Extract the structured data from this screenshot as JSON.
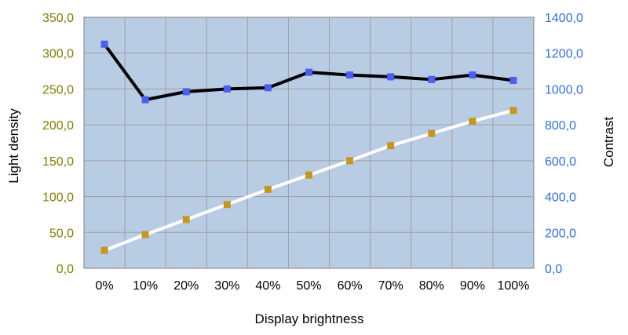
{
  "chart_data": {
    "type": "line",
    "xlabel": "Display brightness",
    "ylabel_left": "Light density",
    "ylabel_right": "Contrast",
    "categories": [
      "0%",
      "10%",
      "20%",
      "30%",
      "40%",
      "50%",
      "60%",
      "70%",
      "80%",
      "90%",
      "100%"
    ],
    "y_left": {
      "range": [
        0,
        350
      ],
      "ticks": [
        "0,0",
        "50,0",
        "100,0",
        "150,0",
        "200,0",
        "250,0",
        "300,0",
        "350,0"
      ],
      "tick_values": [
        0,
        50,
        100,
        150,
        200,
        250,
        300,
        350
      ]
    },
    "y_right": {
      "range": [
        0,
        1400
      ],
      "ticks": [
        "0,0",
        "200,0",
        "400,0",
        "600,0",
        "800,0",
        "1000,0",
        "1200,0",
        "1400,0"
      ],
      "tick_values": [
        0,
        200,
        400,
        600,
        800,
        1000,
        1200,
        1400
      ]
    },
    "series": [
      {
        "axis": "left",
        "line_color": "#ffffff",
        "marker_color": "#c8961e",
        "values": [
          25,
          47,
          68,
          89,
          110,
          130,
          150,
          171,
          188,
          205,
          220
        ]
      },
      {
        "axis": "right",
        "line_color": "#000000",
        "marker_color": "#4a5ef0",
        "values": [
          1250,
          940,
          985,
          1000,
          1007,
          1093,
          1078,
          1068,
          1053,
          1078,
          1048
        ]
      }
    ],
    "plot_background": "#b8cce4",
    "grid": true,
    "legend": "none"
  }
}
